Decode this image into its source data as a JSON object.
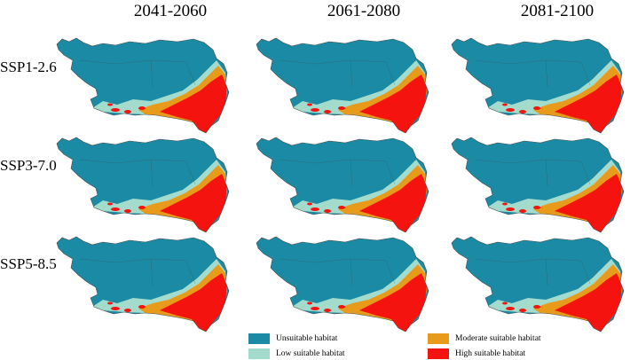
{
  "columns": [
    "2041-2060",
    "2061-2080",
    "2081-2100"
  ],
  "rows": [
    "SSP1-2.6",
    "SSP3-7.0",
    "SSP5-8.5"
  ],
  "legend": [
    {
      "label": "Unsuitable habitat",
      "color": "#1a8aa5"
    },
    {
      "label": "Low suitable habitat",
      "color": "#a3dccc"
    },
    {
      "label": "Moderate suitable habitat",
      "color": "#e89b1a"
    },
    {
      "label": "High suitable habitat",
      "color": "#f4130f"
    }
  ],
  "colors": {
    "unsuitable": "#1a8aa5",
    "low": "#a3dccc",
    "moderate": "#e89b1a",
    "high": "#f4130f",
    "border": "#4a4a4a"
  }
}
